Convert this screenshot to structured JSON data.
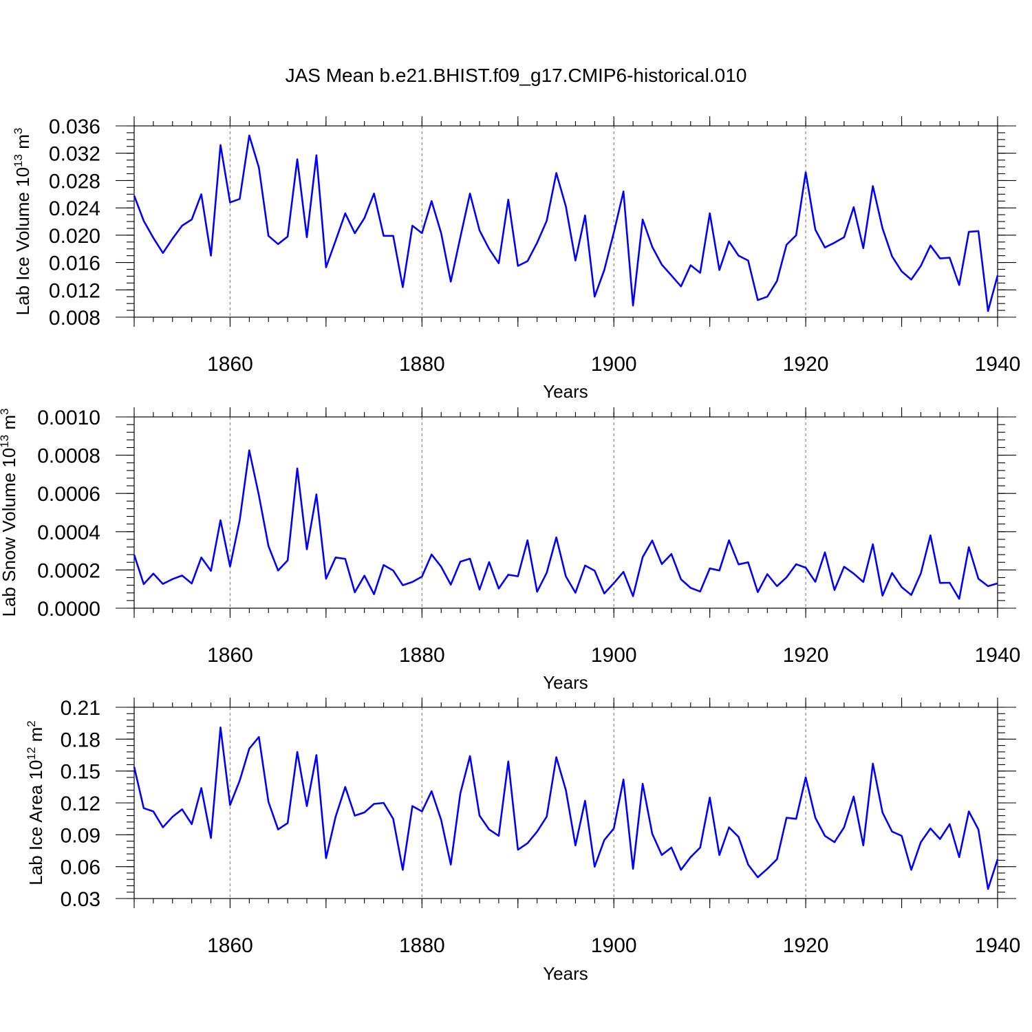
{
  "title": "JAS Mean b.e21.BHIST.f09_g17.CMIP6-historical.010",
  "colors": {
    "line": "#0000ff",
    "grid": "#888888",
    "axis": "#000000"
  },
  "chart_data": [
    {
      "type": "line",
      "name": "ice-volume",
      "ylabel_main": "Lab Ice Volume 10",
      "ylabel_exp1": "13",
      "ylabel_mid": " m",
      "ylabel_exp2": "3",
      "xlabel": "Years",
      "xlim": [
        1850,
        1940
      ],
      "ylim": [
        0.008,
        0.036
      ],
      "xticks": [
        1860,
        1880,
        1900,
        1920,
        1940
      ],
      "yticks": [
        0.008,
        0.012,
        0.016,
        0.02,
        0.024,
        0.028,
        0.032,
        0.036
      ],
      "ytick_labels": [
        "0.008",
        "0.012",
        "0.016",
        "0.020",
        "0.024",
        "0.028",
        "0.032",
        "0.036"
      ],
      "y_minor_step": 0.001,
      "gridlines_x": [
        1860,
        1880,
        1900,
        1920
      ],
      "x": [
        1850,
        1851,
        1852,
        1853,
        1854,
        1855,
        1856,
        1857,
        1858,
        1859,
        1860,
        1861,
        1862,
        1863,
        1864,
        1865,
        1866,
        1867,
        1868,
        1869,
        1870,
        1871,
        1872,
        1873,
        1874,
        1875,
        1876,
        1877,
        1878,
        1879,
        1880,
        1881,
        1882,
        1883,
        1884,
        1885,
        1886,
        1887,
        1888,
        1889,
        1890,
        1891,
        1892,
        1893,
        1894,
        1895,
        1896,
        1897,
        1898,
        1899,
        1900,
        1901,
        1902,
        1903,
        1904,
        1905,
        1906,
        1907,
        1908,
        1909,
        1910,
        1911,
        1912,
        1913,
        1914,
        1915,
        1916,
        1917,
        1918,
        1919,
        1920,
        1921,
        1922,
        1923,
        1924,
        1925,
        1926,
        1927,
        1928,
        1929,
        1930,
        1931,
        1932,
        1933,
        1934,
        1935,
        1936,
        1937,
        1938,
        1939,
        1940
      ],
      "values": [
        0.0258,
        0.0221,
        0.0196,
        0.0174,
        0.0195,
        0.0214,
        0.0223,
        0.026,
        0.017,
        0.0332,
        0.0248,
        0.0253,
        0.0346,
        0.0299,
        0.0199,
        0.0187,
        0.0198,
        0.0311,
        0.0197,
        0.0317,
        0.0153,
        0.0192,
        0.0232,
        0.0203,
        0.0225,
        0.0261,
        0.0199,
        0.0199,
        0.0124,
        0.0214,
        0.0203,
        0.025,
        0.0203,
        0.0132,
        0.0197,
        0.0261,
        0.0207,
        0.018,
        0.0159,
        0.0252,
        0.0155,
        0.0162,
        0.0189,
        0.0221,
        0.0291,
        0.0242,
        0.0163,
        0.0229,
        0.011,
        0.0149,
        0.0204,
        0.0264,
        0.0097,
        0.0223,
        0.0183,
        0.0157,
        0.0141,
        0.0125,
        0.0156,
        0.0145,
        0.0232,
        0.0149,
        0.0191,
        0.017,
        0.0163,
        0.0105,
        0.011,
        0.0133,
        0.0186,
        0.02,
        0.0292,
        0.0208,
        0.0182,
        0.0189,
        0.0197,
        0.0241,
        0.0181,
        0.0272,
        0.021,
        0.0169,
        0.0147,
        0.0135,
        0.0155,
        0.0185,
        0.0166,
        0.0167,
        0.0127,
        0.0205,
        0.0206,
        0.0089,
        0.0141
      ]
    },
    {
      "type": "line",
      "name": "snow-volume",
      "ylabel_main": "Lab Snow Volume 10",
      "ylabel_exp1": "13",
      "ylabel_mid": " m",
      "ylabel_exp2": "3",
      "xlabel": "Years",
      "xlim": [
        1850,
        1940
      ],
      "ylim": [
        0.0,
        0.001
      ],
      "xticks": [
        1860,
        1880,
        1900,
        1920,
        1940
      ],
      "yticks": [
        0.0,
        0.0002,
        0.0004,
        0.0006,
        0.0008,
        0.001
      ],
      "ytick_labels": [
        "0.0000",
        "0.0002",
        "0.0004",
        "0.0006",
        "0.0008",
        "0.0010"
      ],
      "y_minor_step": 4e-05,
      "gridlines_x": [
        1860,
        1880,
        1900,
        1920
      ],
      "x": [
        1850,
        1851,
        1852,
        1853,
        1854,
        1855,
        1856,
        1857,
        1858,
        1859,
        1860,
        1861,
        1862,
        1863,
        1864,
        1865,
        1866,
        1867,
        1868,
        1869,
        1870,
        1871,
        1872,
        1873,
        1874,
        1875,
        1876,
        1877,
        1878,
        1879,
        1880,
        1881,
        1882,
        1883,
        1884,
        1885,
        1886,
        1887,
        1888,
        1889,
        1890,
        1891,
        1892,
        1893,
        1894,
        1895,
        1896,
        1897,
        1898,
        1899,
        1900,
        1901,
        1902,
        1903,
        1904,
        1905,
        1906,
        1907,
        1908,
        1909,
        1910,
        1911,
        1912,
        1913,
        1914,
        1915,
        1916,
        1917,
        1918,
        1919,
        1920,
        1921,
        1922,
        1923,
        1924,
        1925,
        1926,
        1927,
        1928,
        1929,
        1930,
        1931,
        1932,
        1933,
        1934,
        1935,
        1936,
        1937,
        1938,
        1939,
        1940
      ],
      "values": [
        0.000279,
        0.000126,
        0.000181,
        0.000127,
        0.000152,
        0.000171,
        0.000129,
        0.000265,
        0.000195,
        0.00046,
        0.000218,
        0.00046,
        0.000825,
        0.00059,
        0.000325,
        0.000197,
        0.00025,
        0.000731,
        0.000308,
        0.000595,
        0.000154,
        0.000265,
        0.000258,
        8.3e-05,
        0.00017,
        7.3e-05,
        0.000226,
        0.000197,
        0.00012,
        0.000137,
        0.000165,
        0.000281,
        0.000217,
        0.000123,
        0.000243,
        0.000259,
        9.7e-05,
        0.000241,
        0.000103,
        0.000175,
        0.000167,
        0.000355,
        8.6e-05,
        0.000185,
        0.00037,
        0.000166,
        8.1e-05,
        0.000223,
        0.000196,
        7.7e-05,
        0.000131,
        0.00019,
        6.3e-05,
        0.000267,
        0.000354,
        0.000231,
        0.000283,
        0.000151,
        0.000106,
        8.7e-05,
        0.000208,
        0.000197,
        0.000355,
        0.000229,
        0.00024,
        8.4e-05,
        0.000178,
        0.000115,
        0.000161,
        0.00023,
        0.000212,
        0.000138,
        0.000292,
        9.5e-05,
        0.000217,
        0.000181,
        0.000137,
        0.000334,
        6.6e-05,
        0.000184,
        0.00011,
        6.9e-05,
        0.000182,
        0.000381,
        0.000132,
        0.000133,
        4.9e-05,
        0.000319,
        0.000154,
        0.000115,
        0.00013
      ]
    },
    {
      "type": "line",
      "name": "ice-area",
      "ylabel_main": "Lab Ice Area 10",
      "ylabel_exp1": "12",
      "ylabel_mid": " m",
      "ylabel_exp2": "2",
      "xlabel": "Years",
      "xlim": [
        1850,
        1940
      ],
      "ylim": [
        0.03,
        0.21
      ],
      "xticks": [
        1860,
        1880,
        1900,
        1920,
        1940
      ],
      "yticks": [
        0.03,
        0.06,
        0.09,
        0.12,
        0.15,
        0.18,
        0.21
      ],
      "ytick_labels": [
        "0.03",
        "0.06",
        "0.09",
        "0.12",
        "0.15",
        "0.18",
        "0.21"
      ],
      "y_minor_step": 0.006,
      "gridlines_x": [
        1860,
        1880,
        1900,
        1920
      ],
      "x": [
        1850,
        1851,
        1852,
        1853,
        1854,
        1855,
        1856,
        1857,
        1858,
        1859,
        1860,
        1861,
        1862,
        1863,
        1864,
        1865,
        1866,
        1867,
        1868,
        1869,
        1870,
        1871,
        1872,
        1873,
        1874,
        1875,
        1876,
        1877,
        1878,
        1879,
        1880,
        1881,
        1882,
        1883,
        1884,
        1885,
        1886,
        1887,
        1888,
        1889,
        1890,
        1891,
        1892,
        1893,
        1894,
        1895,
        1896,
        1897,
        1898,
        1899,
        1900,
        1901,
        1902,
        1903,
        1904,
        1905,
        1906,
        1907,
        1908,
        1909,
        1910,
        1911,
        1912,
        1913,
        1914,
        1915,
        1916,
        1917,
        1918,
        1919,
        1920,
        1921,
        1922,
        1923,
        1924,
        1925,
        1926,
        1927,
        1928,
        1929,
        1930,
        1931,
        1932,
        1933,
        1934,
        1935,
        1936,
        1937,
        1938,
        1939,
        1940
      ],
      "values": [
        0.154,
        0.115,
        0.112,
        0.097,
        0.107,
        0.114,
        0.1,
        0.134,
        0.087,
        0.191,
        0.118,
        0.141,
        0.171,
        0.182,
        0.121,
        0.095,
        0.101,
        0.168,
        0.117,
        0.165,
        0.068,
        0.107,
        0.135,
        0.108,
        0.111,
        0.119,
        0.12,
        0.105,
        0.057,
        0.117,
        0.112,
        0.131,
        0.104,
        0.062,
        0.129,
        0.164,
        0.108,
        0.095,
        0.089,
        0.159,
        0.076,
        0.082,
        0.093,
        0.107,
        0.163,
        0.132,
        0.08,
        0.122,
        0.06,
        0.085,
        0.096,
        0.142,
        0.058,
        0.138,
        0.091,
        0.071,
        0.078,
        0.057,
        0.069,
        0.078,
        0.125,
        0.071,
        0.097,
        0.088,
        0.062,
        0.05,
        0.058,
        0.067,
        0.106,
        0.105,
        0.144,
        0.106,
        0.089,
        0.083,
        0.097,
        0.126,
        0.08,
        0.157,
        0.111,
        0.093,
        0.089,
        0.057,
        0.083,
        0.096,
        0.086,
        0.1,
        0.069,
        0.112,
        0.095,
        0.039,
        0.067
      ]
    }
  ]
}
